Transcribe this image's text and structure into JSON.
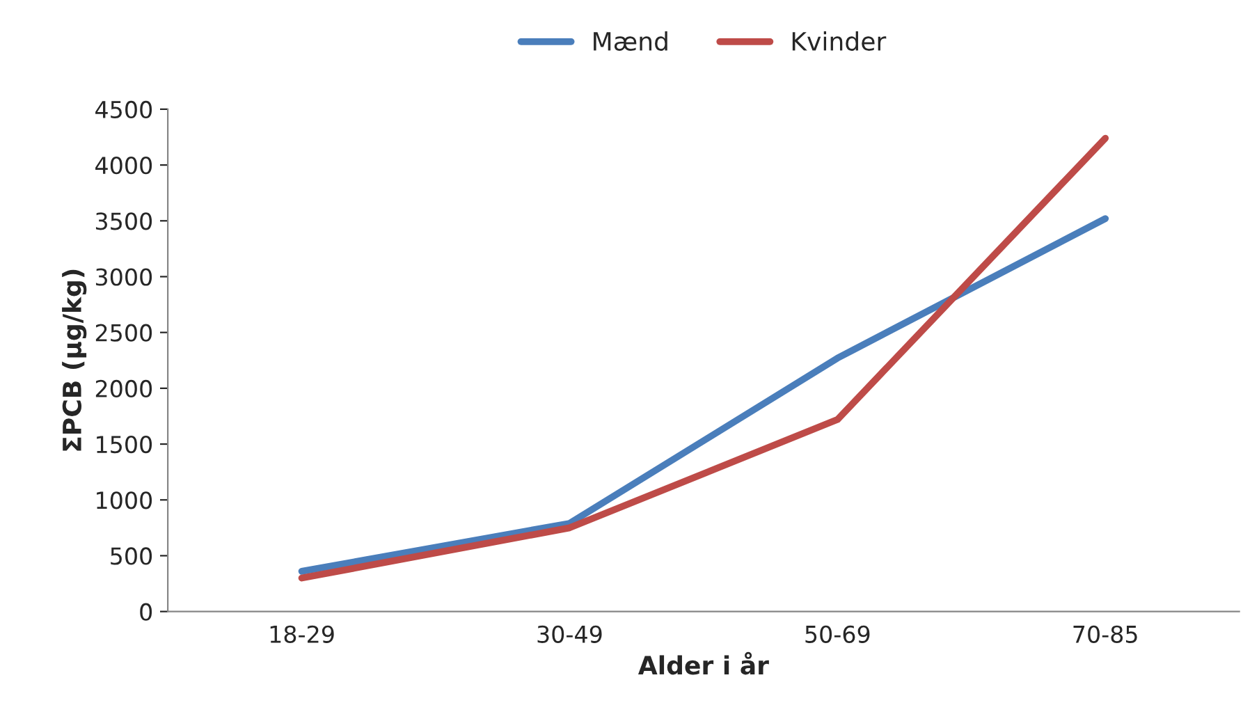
{
  "chart_data": {
    "type": "line",
    "xlabel": "Alder i år",
    "ylabel": "ΣPCB (µg/kg)",
    "categories": [
      "18-29",
      "30-49",
      "50-69",
      "70-85"
    ],
    "series": [
      {
        "name": "Mænd",
        "color": "#4a7ebb",
        "values": [
          360,
          790,
          2270,
          3520
        ]
      },
      {
        "name": "Kvinder",
        "color": "#be4b48",
        "values": [
          300,
          750,
          1720,
          4240
        ]
      }
    ],
    "ylim": [
      0,
      4500
    ],
    "yticks": [
      0,
      500,
      1000,
      1500,
      2000,
      2500,
      3000,
      3500,
      4000,
      4500
    ],
    "grid": false,
    "legend": "top",
    "marker": "none",
    "line_style": "solid"
  }
}
